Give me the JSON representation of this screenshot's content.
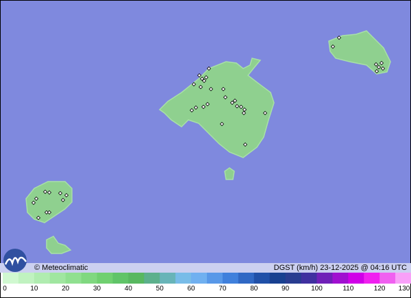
{
  "map": {
    "sea_color": "#7f89de",
    "land_color": "#8fd08f",
    "variable": "DGST (km/h)",
    "timestamp": "23-12-2025 @ 04:16 UTC",
    "label": "DGST (km/h)  23-12-2025 @ 04:16 UTC",
    "credit": "© Meteoclimatic",
    "logo_icon": "meteoclimatic-logo-icon"
  },
  "legend": {
    "ticks": [
      "0",
      "10",
      "20",
      "30",
      "40",
      "50",
      "60",
      "70",
      "80",
      "90",
      "100",
      "110",
      "120",
      "130"
    ],
    "colors": [
      "#d0f8d0",
      "#c0f2c0",
      "#b0ecb0",
      "#a0e6a0",
      "#90e090",
      "#80d880",
      "#70d070",
      "#60c468",
      "#58b860",
      "#5cb08c",
      "#68b4b8",
      "#78bce8",
      "#70b0f0",
      "#5898e8",
      "#4080dc",
      "#3068c4",
      "#2050a8",
      "#184090",
      "#283c90",
      "#4030a0",
      "#7020b8",
      "#a010d0",
      "#d000e8",
      "#f020f0",
      "#f060f0",
      "#f8a0f8"
    ]
  }
}
